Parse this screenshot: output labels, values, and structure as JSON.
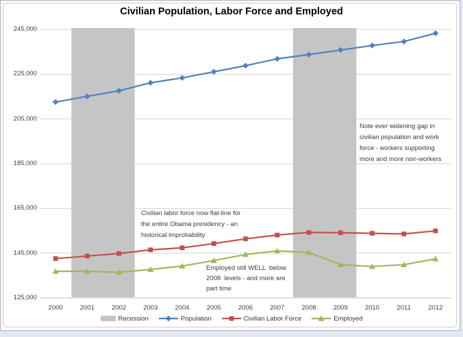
{
  "chart_data": {
    "type": "line",
    "title": "Civilian Population, Labor Force and Employed",
    "categories": [
      "2000",
      "2001",
      "2002",
      "2003",
      "2004",
      "2005",
      "2006",
      "2007",
      "2008",
      "2009",
      "2010",
      "2011",
      "2012"
    ],
    "series": [
      {
        "name": "Population",
        "color": "#4F81BD",
        "marker": "diamond",
        "values": [
          212577,
          215092,
          217570,
          221168,
          223357,
          226082,
          228815,
          231867,
          233788,
          235801,
          237830,
          239618,
          243284
        ]
      },
      {
        "name": "Civilian Labor Force",
        "color": "#C0504D",
        "marker": "square",
        "values": [
          142583,
          143734,
          144863,
          146510,
          147401,
          149320,
          151428,
          153124,
          154287,
          154142,
          153889,
          153617,
          154975
        ]
      },
      {
        "name": "Employed",
        "color": "#9BBB59",
        "marker": "triangle",
        "values": [
          136891,
          136933,
          136485,
          137736,
          139252,
          141730,
          144427,
          146047,
          145362,
          139877,
          139064,
          139869,
          142469
        ]
      }
    ],
    "ylim": [
      125000,
      245000
    ],
    "ytick_step": 20000,
    "ytick_labels": [
      "245,000",
      "225,000",
      "205,000",
      "185,000",
      "165,000",
      "145,000",
      "125,000"
    ],
    "grid": true,
    "legend_position": "bottom",
    "gridline_color": "#D5D5D5",
    "axis_line_color": "#BFBFBF",
    "recession": {
      "label": "Recession",
      "color": "#C5C5C5",
      "bands": [
        {
          "start": "2001",
          "end": "2002"
        },
        {
          "start": "2008",
          "end": "2009"
        }
      ]
    }
  },
  "annotations": [
    {
      "text": "Note ever widening gap in\ncivilian population and work\nforce - workers supporting\nmore and more non-workers"
    },
    {
      "text": "Civilian labor force now flat-line for\nthe entire Obama presidency - an\nhistorical improbability"
    },
    {
      "text": "Employed still WELL  below\n2008  levels - and more are\npart time"
    }
  ]
}
